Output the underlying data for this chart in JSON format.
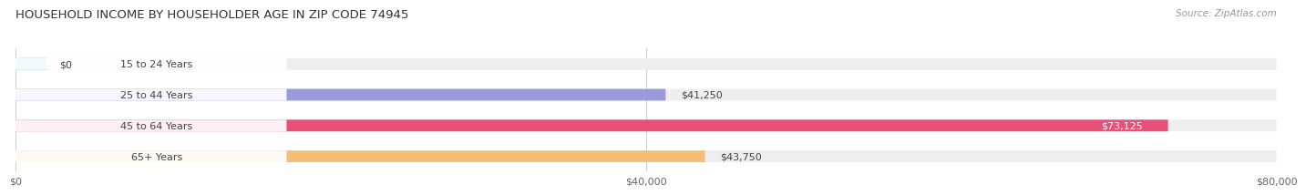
{
  "title": "HOUSEHOLD INCOME BY HOUSEHOLDER AGE IN ZIP CODE 74945",
  "source": "Source: ZipAtlas.com",
  "categories": [
    "15 to 24 Years",
    "25 to 44 Years",
    "45 to 64 Years",
    "65+ Years"
  ],
  "values": [
    0,
    41250,
    73125,
    43750
  ],
  "bar_colors": [
    "#62cece",
    "#9b9bdb",
    "#e8507a",
    "#f5be74"
  ],
  "bar_bg_color": "#eeeeee",
  "max_value": 80000,
  "xticks": [
    0,
    40000,
    80000
  ],
  "xtick_labels": [
    "$0",
    "$40,000",
    "$80,000"
  ],
  "value_labels": [
    "$0",
    "$41,250",
    "$73,125",
    "$43,750"
  ],
  "figsize": [
    14.06,
    2.33
  ],
  "background_color": "#ffffff",
  "title_fontsize": 9.5,
  "label_fontsize": 8,
  "tick_fontsize": 8,
  "source_fontsize": 7.5
}
